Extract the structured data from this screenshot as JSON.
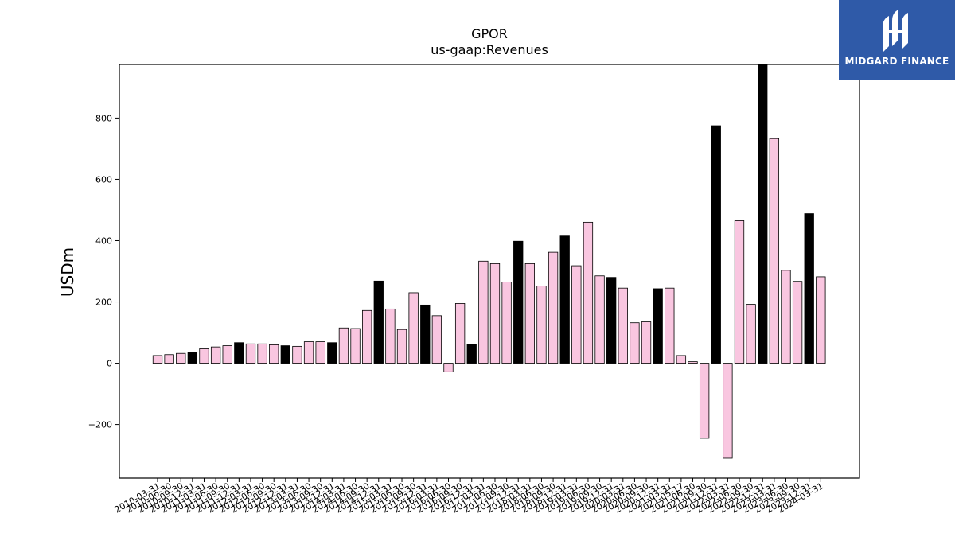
{
  "logo": {
    "text": "MIDGARD FINANCE"
  },
  "chart_data": {
    "type": "bar",
    "title": "GPOR",
    "subtitle": "us-gaap:Revenues",
    "xlabel": "",
    "ylabel": "USDm",
    "ylim": [
      -375,
      975
    ],
    "yticks": [
      -200,
      0,
      200,
      400,
      600,
      800
    ],
    "ytick_labels": [
      "−200",
      "0",
      "200",
      "400",
      "600",
      "800"
    ],
    "grid": false,
    "colors": {
      "quarter": "#f9c6e0",
      "annual": "#000000",
      "edge": "#000000"
    },
    "categories": [
      "2010-03-31",
      "2010-06-30",
      "2010-09-30",
      "2010-12-31",
      "2011-03-31",
      "2011-06-30",
      "2011-09-30",
      "2011-12-31",
      "2012-03-31",
      "2012-06-30",
      "2012-09-30",
      "2012-12-31",
      "2013-03-31",
      "2013-06-30",
      "2013-09-30",
      "2013-12-31",
      "2014-03-31",
      "2014-06-30",
      "2014-09-30",
      "2014-12-31",
      "2015-03-31",
      "2015-06-30",
      "2015-09-30",
      "2015-12-31",
      "2016-03-31",
      "2016-06-30",
      "2016-09-30",
      "2016-12-31",
      "2017-03-31",
      "2017-06-30",
      "2017-09-30",
      "2017-12-31",
      "2018-03-31",
      "2018-06-30",
      "2018-09-30",
      "2018-12-31",
      "2019-03-31",
      "2019-06-30",
      "2019-09-30",
      "2019-12-31",
      "2020-03-31",
      "2020-06-30",
      "2020-09-30",
      "2020-12-31",
      "2021-03-31",
      "2021-05-17",
      "2021-06-30",
      "2021-09-30",
      "2021-12-31",
      "2022-03-31",
      "2022-06-30",
      "2022-09-30",
      "2022-12-31",
      "2023-03-31",
      "2023-06-30",
      "2023-09-30",
      "2023-12-31",
      "2024-03-31"
    ],
    "x_tick_labels": [
      "2010-03-31",
      "2010-06-30",
      "2010-09-30",
      "2010-12-31",
      "2011-03-31",
      "2011-06-30",
      "2011-09-30",
      "2011-12-31",
      "2012-03-31",
      "2012-06-30",
      "2012-09-30",
      "2012-12-31",
      "2013-03-31",
      "2013-06-30",
      "2013-09-30",
      "2013-12-31",
      "2014-03-31",
      "2014-06-30",
      "2014-09-30",
      "2014-12-31",
      "2015-03-31",
      "2015-06-30",
      "2015-09-30",
      "2015-12-31",
      "2016-03-31",
      "2016-06-30",
      "2016-09-30",
      "2016-12-31",
      "2017-03-31",
      "2017-06-30",
      "2017-09-30",
      "2017-12-31",
      "2018-03-31",
      "2018-06-30",
      "2018-09-30",
      "2018-12-31",
      "2019-03-31",
      "2019-06-30",
      "2019-09-30",
      "2019-12-31",
      "2020-03-31",
      "2020-06-30",
      "2020-09-30",
      "2020-12-31",
      "2021-03-31",
      "2021-05-17",
      "2021-06-30",
      "2021-09-30",
      "2021-12-31",
      "2022-03-31",
      "2022-06-30",
      "2022-09-30",
      "2022-12-31",
      "2023-03-31",
      "2023-06-30",
      "2023-09-30",
      "2023-12-31",
      "2024-03-31"
    ],
    "values": [
      25,
      28,
      32,
      35,
      47,
      53,
      57,
      67,
      63,
      63,
      60,
      57,
      55,
      70,
      70,
      67,
      115,
      113,
      172,
      268,
      177,
      110,
      230,
      190,
      155,
      -28,
      195,
      62,
      333,
      325,
      265,
      398,
      325,
      252,
      362,
      415,
      318,
      460,
      285,
      280,
      245,
      132,
      135,
      243,
      245,
      25,
      5,
      -245,
      775,
      -310,
      465,
      192,
      985,
      733,
      303,
      267,
      488,
      282
    ],
    "annual": [
      false,
      false,
      false,
      true,
      false,
      false,
      false,
      true,
      false,
      false,
      false,
      true,
      false,
      false,
      false,
      true,
      false,
      false,
      false,
      true,
      false,
      false,
      false,
      true,
      false,
      false,
      false,
      true,
      false,
      false,
      false,
      true,
      false,
      false,
      false,
      true,
      false,
      false,
      false,
      true,
      false,
      false,
      false,
      true,
      false,
      false,
      false,
      false,
      true,
      false,
      false,
      false,
      true,
      false,
      false,
      false,
      true,
      false
    ]
  }
}
